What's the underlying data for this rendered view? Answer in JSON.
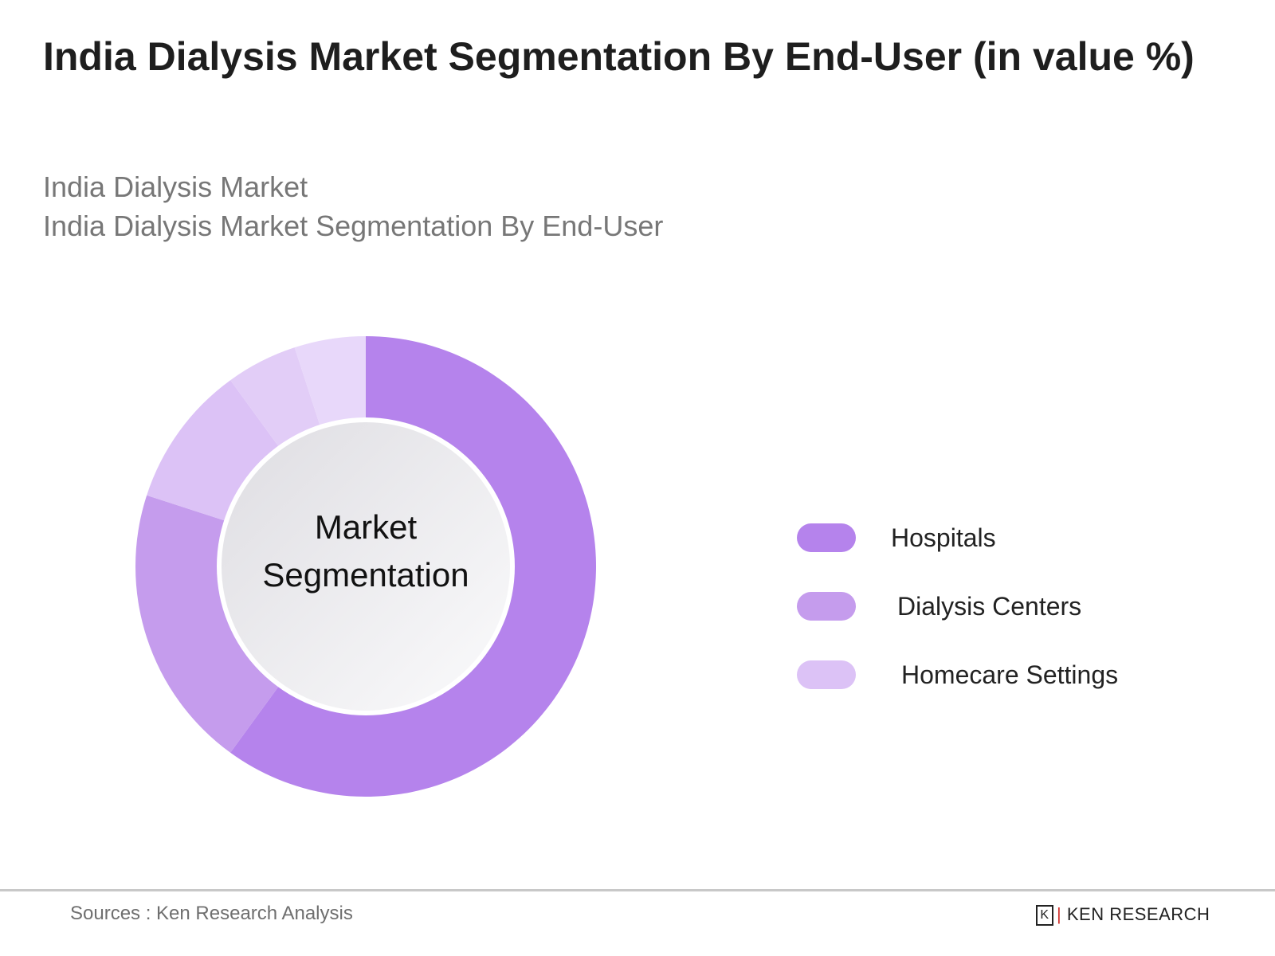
{
  "header": {
    "title": "India Dialysis Market Segmentation By End-User (in value %)",
    "subtitle_1": "India Dialysis Market",
    "subtitle_2": "India Dialysis Market Segmentation By End-User"
  },
  "center_label": {
    "line1": "Market",
    "line2": "Segmentation"
  },
  "legend": [
    {
      "label": "Hospitals",
      "color": "#b583ec"
    },
    {
      "label": "Dialysis Centers",
      "color": "#c59ced"
    },
    {
      "label": "Homecare Settings",
      "color": "#dcc2f6"
    }
  ],
  "footer": {
    "source": "Sources : Ken Research Analysis",
    "logo_text": "KEN RESEARCH"
  },
  "chart_data": {
    "type": "pie",
    "subtype": "donut",
    "title": "India Dialysis Market Segmentation By End-User (in value %)",
    "categories": [
      "Hospitals",
      "Dialysis Centers",
      "Homecare Settings"
    ],
    "values": [
      60,
      20,
      20
    ],
    "unit": "%",
    "legend_position": "right",
    "slices_drawn": [
      {
        "category": "Hospitals",
        "value": 60,
        "color": "#b583ec"
      },
      {
        "category": "Dialysis Centers",
        "value": 20,
        "color": "#c59ced"
      },
      {
        "category": "Homecare Settings",
        "value": 10,
        "color": "#dcc2f6"
      },
      {
        "category": "Homecare Settings",
        "value": 5,
        "color": "#e2cdf7"
      },
      {
        "category": "Homecare Settings",
        "value": 5,
        "color": "#e8d8fa"
      }
    ]
  }
}
